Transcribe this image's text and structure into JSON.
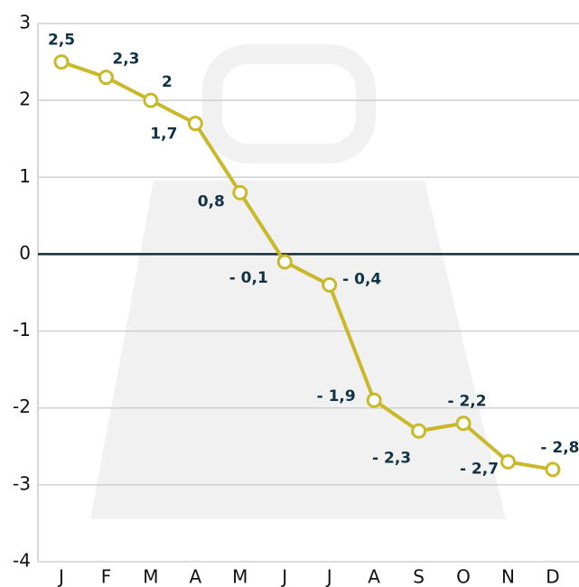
{
  "chart_data": {
    "type": "line",
    "categories": [
      "J",
      "F",
      "M",
      "A",
      "M",
      "J",
      "J",
      "A",
      "S",
      "O",
      "N",
      "D"
    ],
    "series": [
      {
        "color": "#c9b92a",
        "values": [
          2.5,
          2.3,
          2,
          1.7,
          0.8,
          -0.1,
          -0.4,
          -1.9,
          -2.3,
          -2.2,
          -2.7,
          -2.8
        ],
        "value_labels": [
          "2,5",
          "2,3",
          "2",
          "1,7",
          "0,8",
          "- 0,1",
          "- 0,4",
          "- 1,9",
          "- 2,3",
          "- 2,2",
          "- 2,7",
          "- 2,8"
        ]
      }
    ],
    "ylim": [
      -4,
      3
    ],
    "yticks": [
      3,
      2,
      1,
      0,
      -1,
      -2,
      -3,
      -4
    ],
    "grid": true
  }
}
